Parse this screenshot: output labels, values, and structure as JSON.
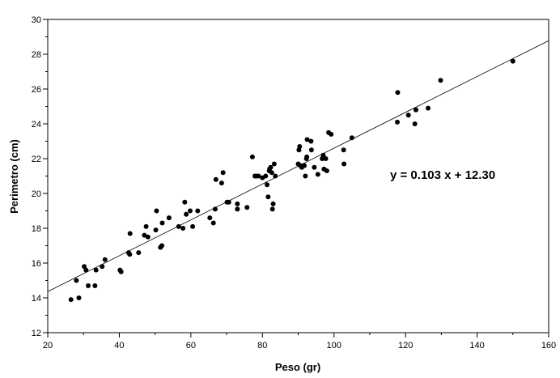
{
  "chart_data": {
    "type": "scatter",
    "title": "",
    "xlabel": "Peso (gr)",
    "ylabel": "Perimetro (cm)",
    "xlim": [
      20,
      160
    ],
    "ylim": [
      12,
      30
    ],
    "x_ticks": [
      20,
      40,
      60,
      80,
      100,
      120,
      140,
      160
    ],
    "y_ticks": [
      12,
      14,
      16,
      18,
      20,
      22,
      24,
      26,
      28,
      30
    ],
    "grid": false,
    "legend": "none",
    "marker_color": "#000000",
    "trendline": {
      "slope": 0.103,
      "intercept": 12.3
    },
    "annotation": "y = 0.103 x + 12.30",
    "points": [
      [
        26.5,
        13.9
      ],
      [
        28.0,
        15.0
      ],
      [
        28.7,
        14.0
      ],
      [
        30.2,
        15.8
      ],
      [
        30.7,
        15.6
      ],
      [
        31.3,
        14.7
      ],
      [
        33.2,
        14.7
      ],
      [
        33.5,
        15.6
      ],
      [
        35.2,
        15.8
      ],
      [
        36.0,
        16.2
      ],
      [
        40.2,
        15.6
      ],
      [
        40.5,
        15.5
      ],
      [
        42.6,
        16.6
      ],
      [
        42.9,
        16.5
      ],
      [
        43.0,
        17.7
      ],
      [
        45.4,
        16.6
      ],
      [
        47.0,
        17.6
      ],
      [
        47.5,
        18.1
      ],
      [
        48.0,
        17.5
      ],
      [
        50.2,
        17.9
      ],
      [
        50.4,
        19.0
      ],
      [
        51.5,
        16.9
      ],
      [
        51.9,
        17.0
      ],
      [
        52.0,
        18.3
      ],
      [
        53.9,
        18.6
      ],
      [
        56.6,
        18.1
      ],
      [
        57.8,
        18.0
      ],
      [
        58.3,
        19.5
      ],
      [
        58.7,
        18.8
      ],
      [
        59.8,
        19.0
      ],
      [
        60.5,
        18.1
      ],
      [
        61.9,
        19.0
      ],
      [
        65.3,
        18.6
      ],
      [
        66.3,
        18.3
      ],
      [
        66.8,
        19.1
      ],
      [
        67.0,
        20.8
      ],
      [
        68.6,
        20.6
      ],
      [
        69.0,
        21.2
      ],
      [
        70.1,
        19.5
      ],
      [
        70.6,
        19.5
      ],
      [
        73.0,
        19.4
      ],
      [
        73.0,
        19.1
      ],
      [
        75.7,
        19.2
      ],
      [
        77.2,
        22.1
      ],
      [
        77.9,
        21.0
      ],
      [
        78.3,
        21.0
      ],
      [
        78.9,
        21.0
      ],
      [
        80.0,
        20.9
      ],
      [
        80.9,
        21.0
      ],
      [
        81.3,
        20.5
      ],
      [
        81.6,
        19.8
      ],
      [
        81.9,
        21.3
      ],
      [
        82.0,
        21.4
      ],
      [
        82.3,
        21.5
      ],
      [
        82.6,
        21.2
      ],
      [
        82.8,
        19.1
      ],
      [
        83.0,
        19.4
      ],
      [
        83.3,
        21.7
      ],
      [
        83.6,
        21.0
      ],
      [
        90.0,
        21.7
      ],
      [
        90.2,
        22.5
      ],
      [
        90.4,
        22.7
      ],
      [
        90.6,
        21.6
      ],
      [
        91.0,
        21.5
      ],
      [
        91.7,
        21.6
      ],
      [
        92.0,
        21.0
      ],
      [
        92.3,
        22.0
      ],
      [
        92.4,
        22.1
      ],
      [
        92.5,
        23.1
      ],
      [
        93.6,
        23.0
      ],
      [
        93.7,
        22.5
      ],
      [
        94.5,
        21.5
      ],
      [
        95.5,
        21.1
      ],
      [
        96.7,
        22.0
      ],
      [
        97.0,
        22.2
      ],
      [
        97.2,
        21.4
      ],
      [
        97.7,
        22.0
      ],
      [
        98.0,
        21.3
      ],
      [
        98.5,
        23.5
      ],
      [
        99.2,
        23.4
      ],
      [
        102.7,
        22.5
      ],
      [
        102.8,
        21.7
      ],
      [
        105.0,
        23.2
      ],
      [
        117.8,
        25.8
      ],
      [
        117.7,
        24.1
      ],
      [
        120.8,
        24.5
      ],
      [
        122.6,
        24.0
      ],
      [
        122.9,
        24.8
      ],
      [
        126.3,
        24.9
      ],
      [
        129.8,
        26.5
      ],
      [
        150.0,
        27.6
      ]
    ]
  }
}
